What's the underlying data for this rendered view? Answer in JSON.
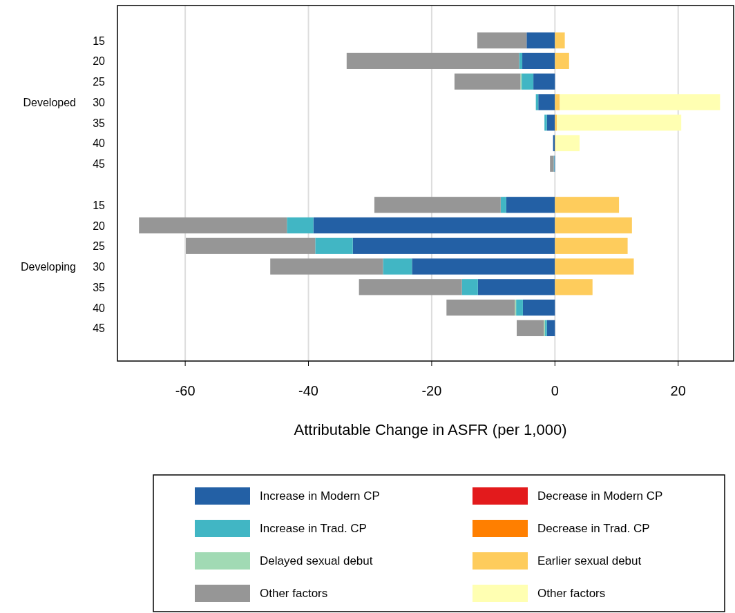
{
  "chart_data": {
    "type": "bar",
    "orientation": "horizontal",
    "stacked": true,
    "xlabel": "Attributable Change in ASFR (per 1,000)",
    "categories": [
      "15",
      "20",
      "25",
      "30",
      "35",
      "40",
      "45",
      null,
      "15",
      "20",
      "25",
      "30",
      "35",
      "40",
      "45"
    ],
    "annotations": [
      "Developed",
      "Developing"
    ],
    "series": [
      {
        "name": "Increase in Modern CP",
        "color": "#2360a5",
        "values": [
          -4.6,
          -5.3,
          -3.5,
          -2.7,
          -1.3,
          -0.3,
          -0.1,
          null,
          -7.9,
          -39.2,
          -32.8,
          -23.2,
          -12.5,
          -5.2,
          -1.3
        ]
      },
      {
        "name": "Increase in Trad. CP",
        "color": "#41b6c4",
        "values": [
          null,
          -0.5,
          -1.9,
          -0.4,
          -0.4,
          null,
          -0.1,
          null,
          -0.9,
          -4.3,
          -6.1,
          -4.7,
          -2.6,
          -1.1,
          -0.3
        ]
      },
      {
        "name": "Delayed sexual debut",
        "color": "#a1dab4",
        "values": [
          null,
          null,
          -0.2,
          null,
          null,
          null,
          null,
          null,
          null,
          null,
          null,
          null,
          null,
          -0.2,
          -0.2
        ]
      },
      {
        "name": "Other factors",
        "color": "#969696",
        "values": [
          -8.0,
          -28.0,
          -10.7,
          null,
          null,
          null,
          -0.6,
          null,
          -20.5,
          -24.0,
          -21.0,
          -18.3,
          -16.7,
          -11.1,
          -4.4
        ]
      },
      {
        "name": "Decrease in Modern CP",
        "color": "#e31a1c",
        "values": [
          null,
          null,
          null,
          null,
          null,
          null,
          null,
          null,
          null,
          null,
          null,
          null,
          null,
          null,
          null
        ]
      },
      {
        "name": "Decrease in Trad. CP",
        "color": "#ff7f00",
        "values": [
          null,
          null,
          null,
          null,
          null,
          null,
          null,
          null,
          null,
          null,
          null,
          null,
          null,
          null,
          null
        ]
      },
      {
        "name": "Earlier sexual debut",
        "color": "#fecc5c",
        "values": [
          1.6,
          2.3,
          null,
          0.8,
          0.3,
          0.1,
          null,
          null,
          10.4,
          12.5,
          11.8,
          12.8,
          6.1,
          null,
          null
        ]
      },
      {
        "name": "Other factors",
        "color": "#ffffb2",
        "values": [
          null,
          null,
          null,
          26.0,
          20.2,
          3.9,
          null,
          null,
          null,
          null,
          null,
          null,
          null,
          null,
          null
        ]
      }
    ],
    "xlim": [
      -71,
      29
    ],
    "xticks": [
      -60,
      -40,
      -20,
      0,
      20
    ],
    "grid": "x",
    "legend": "bottom"
  }
}
